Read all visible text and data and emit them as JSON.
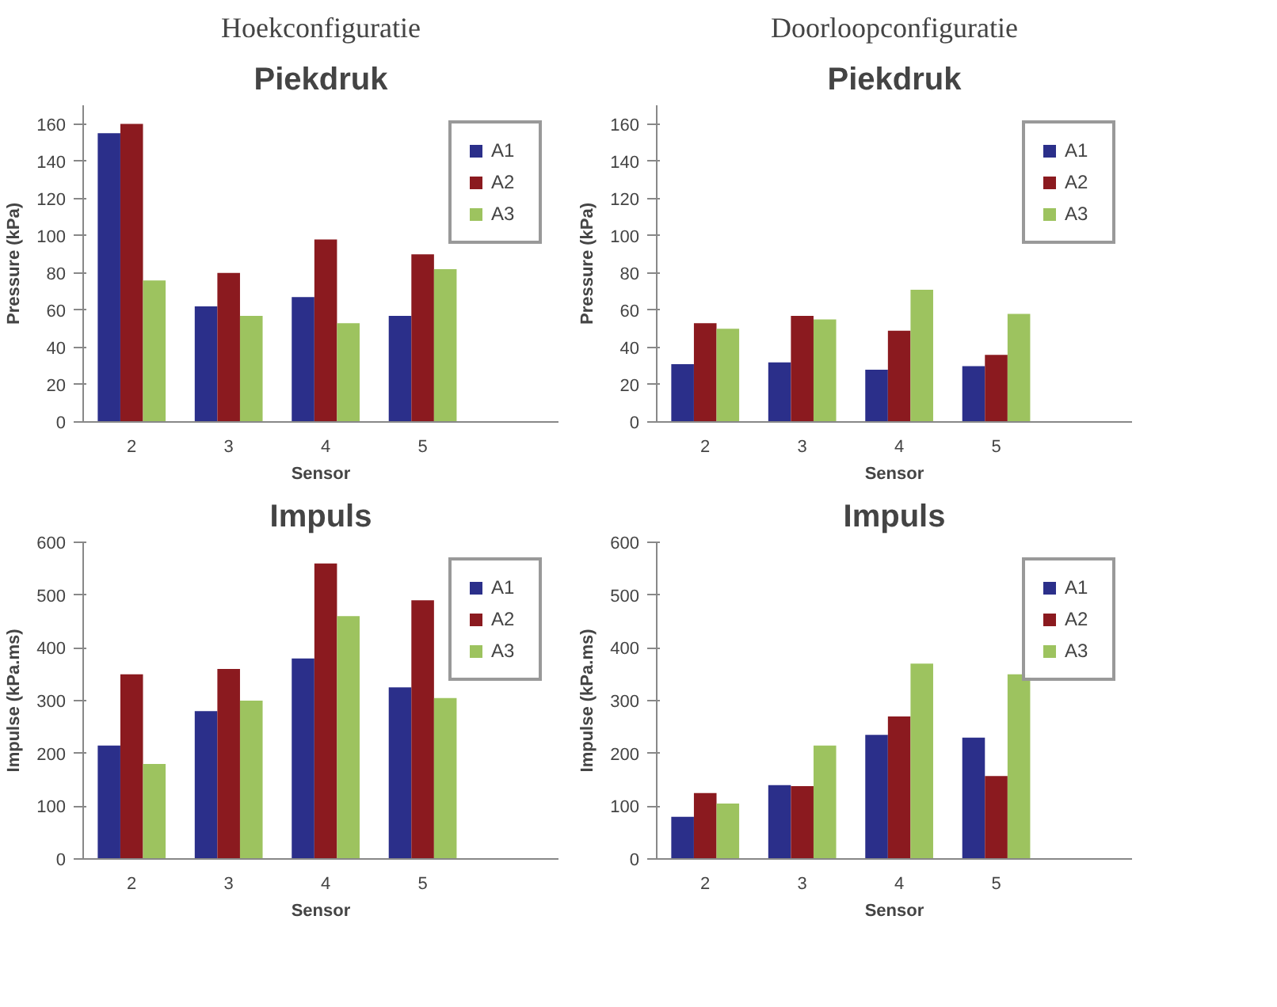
{
  "chart_data": [
    {
      "type": "bar",
      "title": "Hoekconfiguratie",
      "subtitle": "Piekdruk",
      "xlabel": "Sensor",
      "ylabel": "Pressure (kPa)",
      "categories": [
        "2",
        "3",
        "4",
        "5"
      ],
      "ylim": [
        0,
        170
      ],
      "yticks": [
        0,
        20,
        40,
        60,
        80,
        100,
        120,
        140,
        160
      ],
      "grid": false,
      "legend": "right",
      "series": [
        {
          "name": "A1",
          "color": "#2b2f8a",
          "values": [
            155,
            62,
            67,
            57
          ]
        },
        {
          "name": "A2",
          "color": "#8b1a1f",
          "values": [
            160,
            80,
            98,
            90
          ]
        },
        {
          "name": "A3",
          "color": "#9dc35f",
          "values": [
            76,
            57,
            53,
            82
          ]
        }
      ]
    },
    {
      "type": "bar",
      "title": "Doorloopconfiguratie",
      "subtitle": "Piekdruk",
      "xlabel": "Sensor",
      "ylabel": "Pressure (kPa)",
      "categories": [
        "2",
        "3",
        "4",
        "5"
      ],
      "ylim": [
        0,
        170
      ],
      "yticks": [
        0,
        20,
        40,
        60,
        80,
        100,
        120,
        140,
        160
      ],
      "grid": false,
      "legend": "right",
      "series": [
        {
          "name": "A1",
          "color": "#2b2f8a",
          "values": [
            31,
            32,
            28,
            30
          ]
        },
        {
          "name": "A2",
          "color": "#8b1a1f",
          "values": [
            53,
            57,
            49,
            36
          ]
        },
        {
          "name": "A3",
          "color": "#9dc35f",
          "values": [
            50,
            55,
            71,
            58
          ]
        }
      ]
    },
    {
      "type": "bar",
      "title": "Impuls",
      "xlabel": "Sensor",
      "ylabel": "Impulse (kPa.ms)",
      "categories": [
        "2",
        "3",
        "4",
        "5"
      ],
      "ylim": [
        0,
        600
      ],
      "yticks": [
        0,
        100,
        200,
        300,
        400,
        500,
        600
      ],
      "grid": false,
      "legend": "right",
      "series": [
        {
          "name": "A1",
          "color": "#2b2f8a",
          "values": [
            215,
            280,
            380,
            325
          ]
        },
        {
          "name": "A2",
          "color": "#8b1a1f",
          "values": [
            350,
            360,
            560,
            490
          ]
        },
        {
          "name": "A3",
          "color": "#9dc35f",
          "values": [
            180,
            300,
            460,
            305
          ]
        }
      ]
    },
    {
      "type": "bar",
      "title": "Impuls",
      "xlabel": "Sensor",
      "ylabel": "Impulse (kPa.ms)",
      "categories": [
        "2",
        "3",
        "4",
        "5"
      ],
      "ylim": [
        0,
        600
      ],
      "yticks": [
        0,
        100,
        200,
        300,
        400,
        500,
        600
      ],
      "grid": false,
      "legend": "right",
      "series": [
        {
          "name": "A1",
          "color": "#2b2f8a",
          "values": [
            80,
            140,
            235,
            230
          ]
        },
        {
          "name": "A2",
          "color": "#8b1a1f",
          "values": [
            125,
            138,
            270,
            157
          ]
        },
        {
          "name": "A3",
          "color": "#9dc35f",
          "values": [
            105,
            215,
            370,
            350
          ]
        }
      ]
    }
  ]
}
